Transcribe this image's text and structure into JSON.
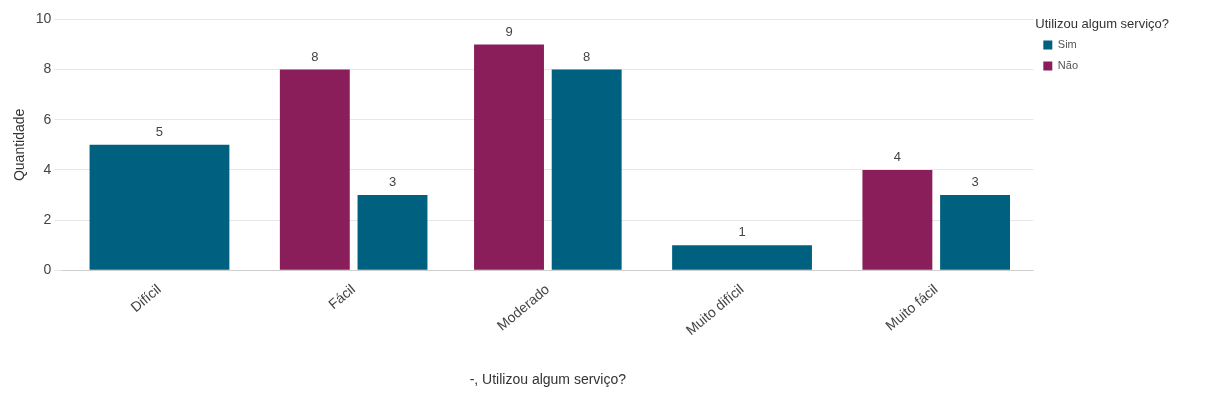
{
  "chart_data": {
    "type": "bar",
    "xlabel": "-, Utilizou algum serviço?",
    "ylabel": "Quantidade",
    "legend_title": "Utilizou algum serviço?",
    "categories": [
      "Difícil",
      "Fácil",
      "Moderado",
      "Muito difícil",
      "Muito fácil"
    ],
    "series": [
      {
        "name": "Não",
        "color": "#891e5a",
        "values": [
          null,
          8,
          9,
          null,
          4
        ]
      },
      {
        "name": "Sim",
        "color": "#00607f",
        "values": [
          5,
          3,
          8,
          1,
          3
        ]
      }
    ],
    "ylim": [
      0,
      10
    ],
    "yticks": [
      0,
      2,
      4,
      6,
      8,
      10
    ],
    "grid": "y",
    "legend": "top right",
    "data_labels": true
  }
}
